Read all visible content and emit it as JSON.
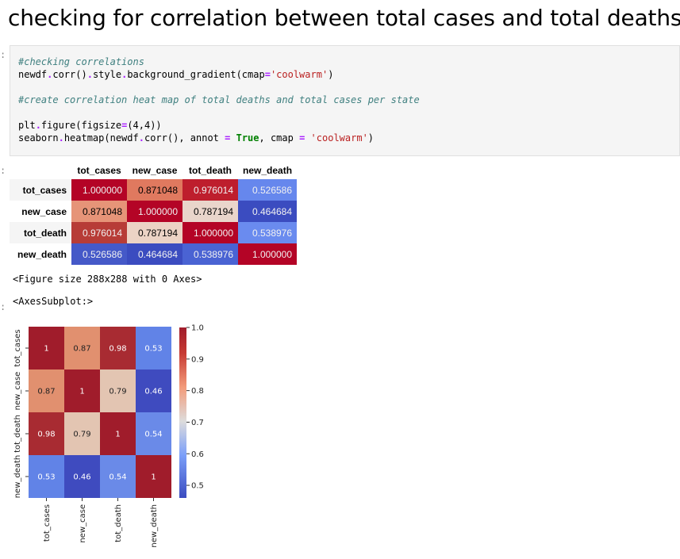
{
  "heading": "checking for correlation between total cases and total deaths",
  "code": {
    "comment1": "#checking correlations",
    "line2_a": "newdf",
    "line2_b": ".",
    "line2_c": "corr()",
    "line2_d": ".",
    "line2_e": "style",
    "line2_f": ".",
    "line2_g": "background_gradient(cmap",
    "line2_h": "=",
    "line2_i": "'coolwarm'",
    "line2_j": ")",
    "comment2": "#create correlation heat map of total deaths and total cases per state",
    "line4_a": "plt",
    "line4_b": ".",
    "line4_c": "figure(figsize",
    "line4_d": "=",
    "line4_e": "(4,4))",
    "line5_a": "seaborn",
    "line5_b": ".",
    "line5_c": "heatmap(newdf",
    "line5_d": ".",
    "line5_e": "corr(), annot ",
    "line5_f": "=",
    "line5_g": " ",
    "line5_h": "True",
    "line5_i": ", cmap ",
    "line5_j": "=",
    "line5_k": " ",
    "line5_l": "'coolwarm'",
    "line5_m": ")"
  },
  "table": {
    "columns": [
      "tot_cases",
      "new_case",
      "tot_death",
      "new_death"
    ],
    "rows": [
      {
        "label": "tot_cases",
        "values": [
          "1.000000",
          "0.871048",
          "0.976014",
          "0.526586"
        ]
      },
      {
        "label": "new_case",
        "values": [
          "0.871048",
          "1.000000",
          "0.787194",
          "0.464684"
        ]
      },
      {
        "label": "tot_death",
        "values": [
          "0.976014",
          "0.787194",
          "1.000000",
          "0.538976"
        ]
      },
      {
        "label": "new_death",
        "values": [
          "0.526586",
          "0.464684",
          "0.538976",
          "1.000000"
        ]
      }
    ],
    "cell_colors": [
      [
        "#b40426",
        "#e0795f",
        "#be1e2d",
        "#6687ed"
      ],
      [
        "#e69478",
        "#b40426",
        "#e9d5cb",
        "#3b4cc0"
      ],
      [
        "#b73c37",
        "#ecd3c5",
        "#b40426",
        "#6a8bef"
      ],
      [
        "#4559c8",
        "#3b4cc0",
        "#4a63d3",
        "#b40426"
      ]
    ],
    "cell_text_colors": [
      [
        "#f1f1f1",
        "#000000",
        "#f1f1f1",
        "#f1f1f1"
      ],
      [
        "#000000",
        "#f1f1f1",
        "#000000",
        "#f1f1f1"
      ],
      [
        "#f1f1f1",
        "#000000",
        "#f1f1f1",
        "#f1f1f1"
      ],
      [
        "#f1f1f1",
        "#f1f1f1",
        "#f1f1f1",
        "#f1f1f1"
      ]
    ]
  },
  "outputs": {
    "figure_size": "<Figure size 288x288 with 0 Axes>",
    "axes_subplot": "<AxesSubplot:>"
  },
  "chart_data": {
    "type": "heatmap",
    "x_labels": [
      "tot_cases",
      "new_case",
      "tot_death",
      "new_death"
    ],
    "y_labels": [
      "tot_cases",
      "new_case",
      "tot_death",
      "new_death"
    ],
    "values": [
      [
        1,
        0.87,
        0.98,
        0.53
      ],
      [
        0.87,
        1,
        0.79,
        0.46
      ],
      [
        0.98,
        0.79,
        1,
        0.54
      ],
      [
        0.53,
        0.46,
        0.54,
        1
      ]
    ],
    "annotations": [
      [
        "1",
        "0.87",
        "0.98",
        "0.53"
      ],
      [
        "0.87",
        "1",
        "0.79",
        "0.46"
      ],
      [
        "0.98",
        "0.79",
        "1",
        "0.54"
      ],
      [
        "0.53",
        "0.46",
        "0.54",
        "1"
      ]
    ],
    "cell_colors": [
      [
        "#a01c2b",
        "#e1906f",
        "#a82b32",
        "#6183e7"
      ],
      [
        "#e1906f",
        "#a01c2b",
        "#e3c5b2",
        "#3f4bbf"
      ],
      [
        "#a82b32",
        "#e3c5b2",
        "#a01c2b",
        "#6a8ae8"
      ],
      [
        "#6183e7",
        "#3f4bbf",
        "#6a8ae8",
        "#a01c2b"
      ]
    ],
    "colorbar": {
      "range": [
        0.46,
        1.0
      ],
      "ticks": [
        0.5,
        0.6,
        0.7,
        0.8,
        0.9,
        1.0
      ],
      "tick_labels": [
        "0.5",
        "0.6",
        "0.7",
        "0.8",
        "0.9",
        "1.0"
      ],
      "cmap": "coolwarm"
    }
  }
}
